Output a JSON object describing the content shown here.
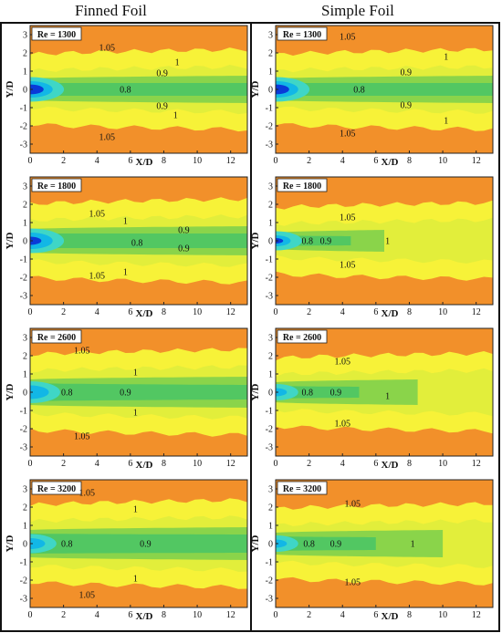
{
  "headers": {
    "left": "Finned Foil",
    "right": "Simple Foil"
  },
  "colors": {
    "background": "#f2902a",
    "contour_105": "#f7f238",
    "contour_1": "#e2ee3b",
    "contour_09": "#8ad44a",
    "contour_08": "#52c762",
    "core_outer": "#3fd6c6",
    "core_mid": "#12b7e6",
    "core_inner": "#0a3ad8"
  },
  "chart_data": [
    {
      "type": "heatmap",
      "panel": "Finned Foil",
      "re_label": "Re = 1300",
      "xlabel": "X/D",
      "ylabel": "Y/D",
      "xlim": [
        0,
        13
      ],
      "ylim": [
        -3.5,
        3.5
      ],
      "xticks": [
        0,
        2,
        4,
        6,
        8,
        10,
        12
      ],
      "yticks": [
        -3,
        -2,
        -1,
        0,
        1,
        2,
        3
      ],
      "contour_labels": [
        "1.05",
        "1",
        "0.9",
        "0.8",
        "0.9",
        "1",
        "1.05"
      ]
    },
    {
      "type": "heatmap",
      "panel": "Simple Foil",
      "re_label": "Re = 1300",
      "xlabel": "X/D",
      "ylabel": "Y/D",
      "xlim": [
        0,
        13
      ],
      "ylim": [
        -3.5,
        3.5
      ],
      "xticks": [
        0,
        2,
        4,
        6,
        8,
        10,
        12
      ],
      "yticks": [
        -3,
        -2,
        -1,
        0,
        1,
        2,
        3
      ],
      "contour_labels": [
        "1.05",
        "1",
        "0.9",
        "0.8",
        "0.9",
        "1",
        "1.05"
      ]
    },
    {
      "type": "heatmap",
      "panel": "Finned Foil",
      "re_label": "Re = 1800",
      "xlabel": "X/D",
      "ylabel": "Y/D",
      "xlim": [
        0,
        13
      ],
      "ylim": [
        -3.5,
        3.5
      ],
      "xticks": [
        0,
        2,
        4,
        6,
        8,
        10,
        12
      ],
      "yticks": [
        -3,
        -2,
        -1,
        0,
        1,
        2,
        3
      ],
      "contour_labels": [
        "1.05",
        "1",
        "0.9",
        "0.8",
        "0.9",
        "1",
        "1.05"
      ]
    },
    {
      "type": "heatmap",
      "panel": "Simple Foil",
      "re_label": "Re = 1800",
      "xlabel": "X/D",
      "ylabel": "Y/D",
      "xlim": [
        0,
        13
      ],
      "ylim": [
        -3.5,
        3.5
      ],
      "xticks": [
        0,
        2,
        4,
        6,
        8,
        10,
        12
      ],
      "yticks": [
        -3,
        -2,
        -1,
        0,
        1,
        2,
        3
      ],
      "contour_labels": [
        "1.05",
        "0.8",
        "0.9",
        "1",
        "1.05"
      ]
    },
    {
      "type": "heatmap",
      "panel": "Finned Foil",
      "re_label": "Re = 2600",
      "xlabel": "X/D",
      "ylabel": "Y/D",
      "xlim": [
        0,
        13
      ],
      "ylim": [
        -3.5,
        3.5
      ],
      "xticks": [
        0,
        2,
        4,
        6,
        8,
        10,
        12
      ],
      "yticks": [
        -3,
        -2,
        -1,
        0,
        1,
        2,
        3
      ],
      "contour_labels": [
        "1.05",
        "1",
        "0.8",
        "0.9",
        "1",
        "1.05"
      ]
    },
    {
      "type": "heatmap",
      "panel": "Simple Foil",
      "re_label": "Re = 2600",
      "xlabel": "X/D",
      "ylabel": "Y/D",
      "xlim": [
        0,
        13
      ],
      "ylim": [
        -3.5,
        3.5
      ],
      "xticks": [
        0,
        2,
        4,
        6,
        8,
        10,
        12
      ],
      "yticks": [
        -3,
        -2,
        -1,
        0,
        1,
        2,
        3
      ],
      "contour_labels": [
        "1.05",
        "0.8",
        "0.9",
        "1",
        "1.05"
      ]
    },
    {
      "type": "heatmap",
      "panel": "Finned Foil",
      "re_label": "Re = 3200",
      "xlabel": "X/D",
      "ylabel": "Y/D",
      "xlim": [
        0,
        13
      ],
      "ylim": [
        -3.5,
        3.5
      ],
      "xticks": [
        0,
        2,
        4,
        6,
        8,
        10,
        12
      ],
      "yticks": [
        -3,
        -2,
        -1,
        0,
        1,
        2,
        3
      ],
      "contour_labels": [
        "1.05",
        "1",
        "0.8",
        "0.9",
        "1",
        "1.05"
      ]
    },
    {
      "type": "heatmap",
      "panel": "Simple Foil",
      "re_label": "Re = 3200",
      "xlabel": "X/D",
      "ylabel": "Y/D",
      "xlim": [
        0,
        13
      ],
      "ylim": [
        -3.5,
        3.5
      ],
      "xticks": [
        0,
        2,
        4,
        6,
        8,
        10,
        12
      ],
      "yticks": [
        -3,
        -2,
        -1,
        0,
        1,
        2,
        3
      ],
      "contour_labels": [
        "1.05",
        "0.8",
        "0.9",
        "1",
        "1.05"
      ]
    }
  ]
}
